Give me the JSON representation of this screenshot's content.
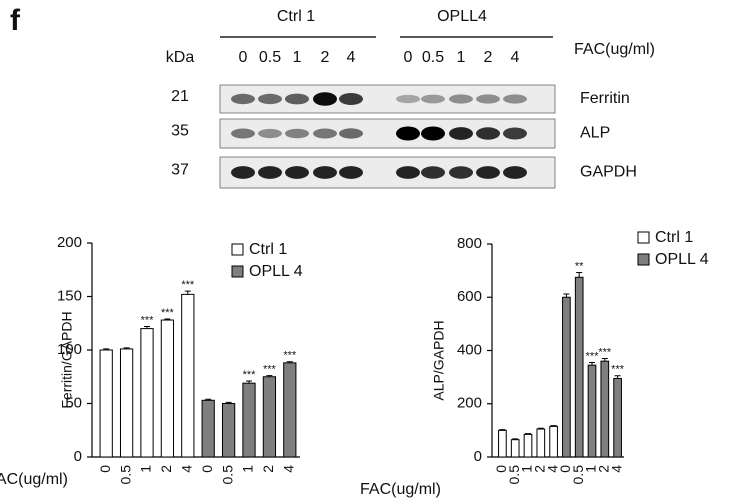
{
  "panel_label": "f",
  "blot": {
    "groups": [
      "Ctrl 1",
      "OPLL4"
    ],
    "kda_label": "kDa",
    "concentration_label": "FAC(ug/ml)",
    "lanes": [
      "0",
      "0.5",
      "1",
      "2",
      "4",
      "0",
      "0.5",
      "1",
      "2",
      "4"
    ],
    "rows": [
      {
        "kda": 21,
        "protein": "Ferritin"
      },
      {
        "kda": 35,
        "protein": "ALP"
      },
      {
        "kda": 37,
        "protein": "GAPDH"
      }
    ]
  },
  "chart_data": [
    {
      "type": "bar",
      "y_label": "Ferritin/GAPDH",
      "x_label": "FAC(ug/ml)",
      "categories": [
        "0",
        "0.5",
        "1",
        "2",
        "4",
        "0",
        "0.5",
        "1",
        "2",
        "4"
      ],
      "ylim": [
        0,
        200
      ],
      "yticks": [
        0,
        50,
        100,
        150,
        200
      ],
      "series": [
        {
          "name": "Ctrl 1",
          "color": "#ffffff",
          "values": [
            100,
            101,
            120,
            128,
            152,
            null,
            null,
            null,
            null,
            null
          ],
          "errors": [
            1,
            1,
            2,
            1,
            3,
            null,
            null,
            null,
            null,
            null
          ],
          "significance": [
            null,
            null,
            "***",
            "***",
            "***",
            null,
            null,
            null,
            null,
            null
          ]
        },
        {
          "name": "OPLL 4",
          "color": "#7f7f7f",
          "values": [
            null,
            null,
            null,
            null,
            null,
            53,
            50,
            69,
            75,
            88
          ],
          "errors": [
            null,
            null,
            null,
            null,
            null,
            1,
            1,
            2,
            1,
            1
          ],
          "significance": [
            null,
            null,
            null,
            null,
            null,
            null,
            null,
            "***",
            "***",
            "***"
          ]
        }
      ]
    },
    {
      "type": "bar",
      "y_label": "ALP/GAPDH",
      "x_label": "FAC(ug/ml)",
      "categories": [
        "0",
        "0.5",
        "1",
        "2",
        "4",
        "0",
        "0.5",
        "1",
        "2",
        "4"
      ],
      "ylim": [
        0,
        800
      ],
      "yticks": [
        0,
        200,
        400,
        600,
        800
      ],
      "series": [
        {
          "name": "Ctrl 1",
          "color": "#ffffff",
          "values": [
            100,
            65,
            85,
            105,
            115,
            null,
            null,
            null,
            null,
            null
          ],
          "errors": [
            3,
            3,
            3,
            3,
            3,
            null,
            null,
            null,
            null,
            null
          ],
          "significance": [
            null,
            null,
            null,
            null,
            null,
            null,
            null,
            null,
            null,
            null
          ]
        },
        {
          "name": "OPLL 4",
          "color": "#7f7f7f",
          "values": [
            null,
            null,
            null,
            null,
            null,
            600,
            675,
            345,
            360,
            295
          ],
          "errors": [
            null,
            null,
            null,
            null,
            null,
            12,
            18,
            10,
            10,
            10
          ],
          "significance": [
            null,
            null,
            null,
            null,
            null,
            null,
            "**",
            "***",
            "***",
            "***"
          ]
        }
      ]
    }
  ]
}
